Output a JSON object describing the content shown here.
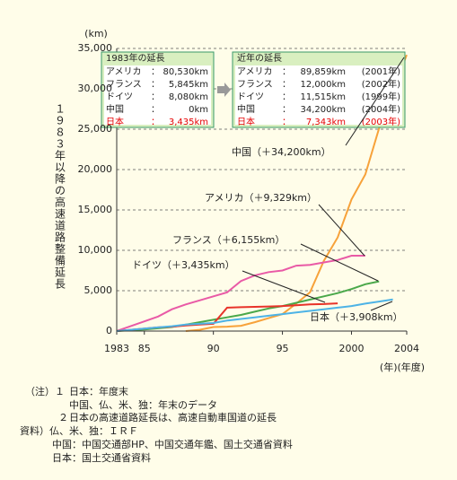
{
  "chart_data": {
    "type": "line",
    "y_label": "１９８３年以降の高速道路整備延長",
    "y_unit": "(km)",
    "x_unit": "(年)(年度)",
    "x": [
      1983,
      1984,
      1985,
      1986,
      1987,
      1988,
      1989,
      1990,
      1991,
      1992,
      1993,
      1994,
      1995,
      1996,
      1997,
      1998,
      1999,
      2000,
      2001,
      2002,
      2003,
      2004
    ],
    "xlim": [
      1983,
      2004
    ],
    "xticks": [
      1983,
      {
        "value": 1985,
        "label": "85"
      },
      {
        "value": 1990,
        "label": "90"
      },
      {
        "value": 1995,
        "label": "95"
      },
      2000,
      2004
    ],
    "ylim": [
      0,
      35000
    ],
    "yticks": [
      0,
      {
        "value": 5000,
        "label": "5,000"
      },
      {
        "value": 10000,
        "label": "10,000"
      },
      {
        "value": 15000,
        "label": "15,000"
      },
      {
        "value": 20000,
        "label": "20,000"
      },
      {
        "value": 25000,
        "label": "25,000"
      },
      {
        "value": 30000,
        "label": "30,000"
      },
      {
        "value": 35000,
        "label": "35,000"
      }
    ],
    "grid": true,
    "series": [
      {
        "label": "中国（＋34,200km）",
        "color": "#f7a23a",
        "values": [
          null,
          null,
          null,
          null,
          null,
          0,
          150,
          500,
          550,
          650,
          1100,
          1600,
          2100,
          3400,
          4800,
          8700,
          11600,
          16300,
          19400,
          25100,
          29700,
          34200
        ]
      },
      {
        "label": "アメリカ（＋9,329km）",
        "color": "#e95aa6",
        "values": [
          0,
          600,
          1200,
          1800,
          2700,
          3300,
          3800,
          4300,
          4800,
          6200,
          6900,
          7300,
          7500,
          8100,
          8200,
          8500,
          8800,
          9329,
          9329,
          null,
          null,
          null
        ]
      },
      {
        "label": "フランス（＋6,155km）",
        "color": "#4aa84a",
        "values": [
          0,
          100,
          200,
          350,
          500,
          800,
          1100,
          1400,
          1700,
          2000,
          2400,
          2800,
          3100,
          3500,
          3900,
          4300,
          4700,
          5200,
          5800,
          6155,
          null,
          null
        ]
      },
      {
        "label": "ドイツ（＋3,435km）",
        "color": "#e8332a",
        "values": [
          0,
          150,
          300,
          450,
          550,
          700,
          800,
          900,
          2900,
          2950,
          3000,
          3050,
          3100,
          3200,
          3300,
          3350,
          3435,
          null,
          null,
          null,
          null,
          null
        ]
      },
      {
        "label": "日本（＋3,908km）",
        "color": "#4db3e6",
        "values": [
          0,
          150,
          300,
          450,
          600,
          800,
          900,
          1000,
          1300,
          1500,
          1700,
          1900,
          2100,
          2300,
          2500,
          2700,
          2900,
          3100,
          3400,
          3650,
          3908,
          null
        ]
      }
    ],
    "box_1983": {
      "title": "1983年の延長",
      "sep": "：",
      "rows": [
        {
          "name": "アメリカ",
          "value": "80,530km"
        },
        {
          "name": "フランス",
          "value": "5,845km"
        },
        {
          "name": "ドイツ",
          "value": "8,080km"
        },
        {
          "name": "中国",
          "value": "0km"
        },
        {
          "name": "日本",
          "value": "3,435km"
        }
      ]
    },
    "box_recent": {
      "title": "近年の延長",
      "sep": "：",
      "rows": [
        {
          "name": "アメリカ",
          "value": "89,859km",
          "year": "(2001年)"
        },
        {
          "name": "フランス",
          "value": "12,000km",
          "year": "(2002年)"
        },
        {
          "name": "ドイツ",
          "value": "11,515km",
          "year": "(1999年)"
        },
        {
          "name": "中国",
          "value": "34,200km",
          "year": "(2004年)"
        },
        {
          "name": "日本",
          "value": "7,343km",
          "year": "(2003年)"
        }
      ]
    }
  },
  "notes": [
    "（注）１",
    "日本：年度末",
    "中国、仏、米、独：年末のデータ",
    "２",
    "日本の高速道路延長は、高速自動車国道の延長",
    "資料）仏、米、独：ＩＲＦ",
    "中国：中国交通部HP、中国交通年鑑、国土交通省資料",
    "日本：国土交通省資料"
  ]
}
